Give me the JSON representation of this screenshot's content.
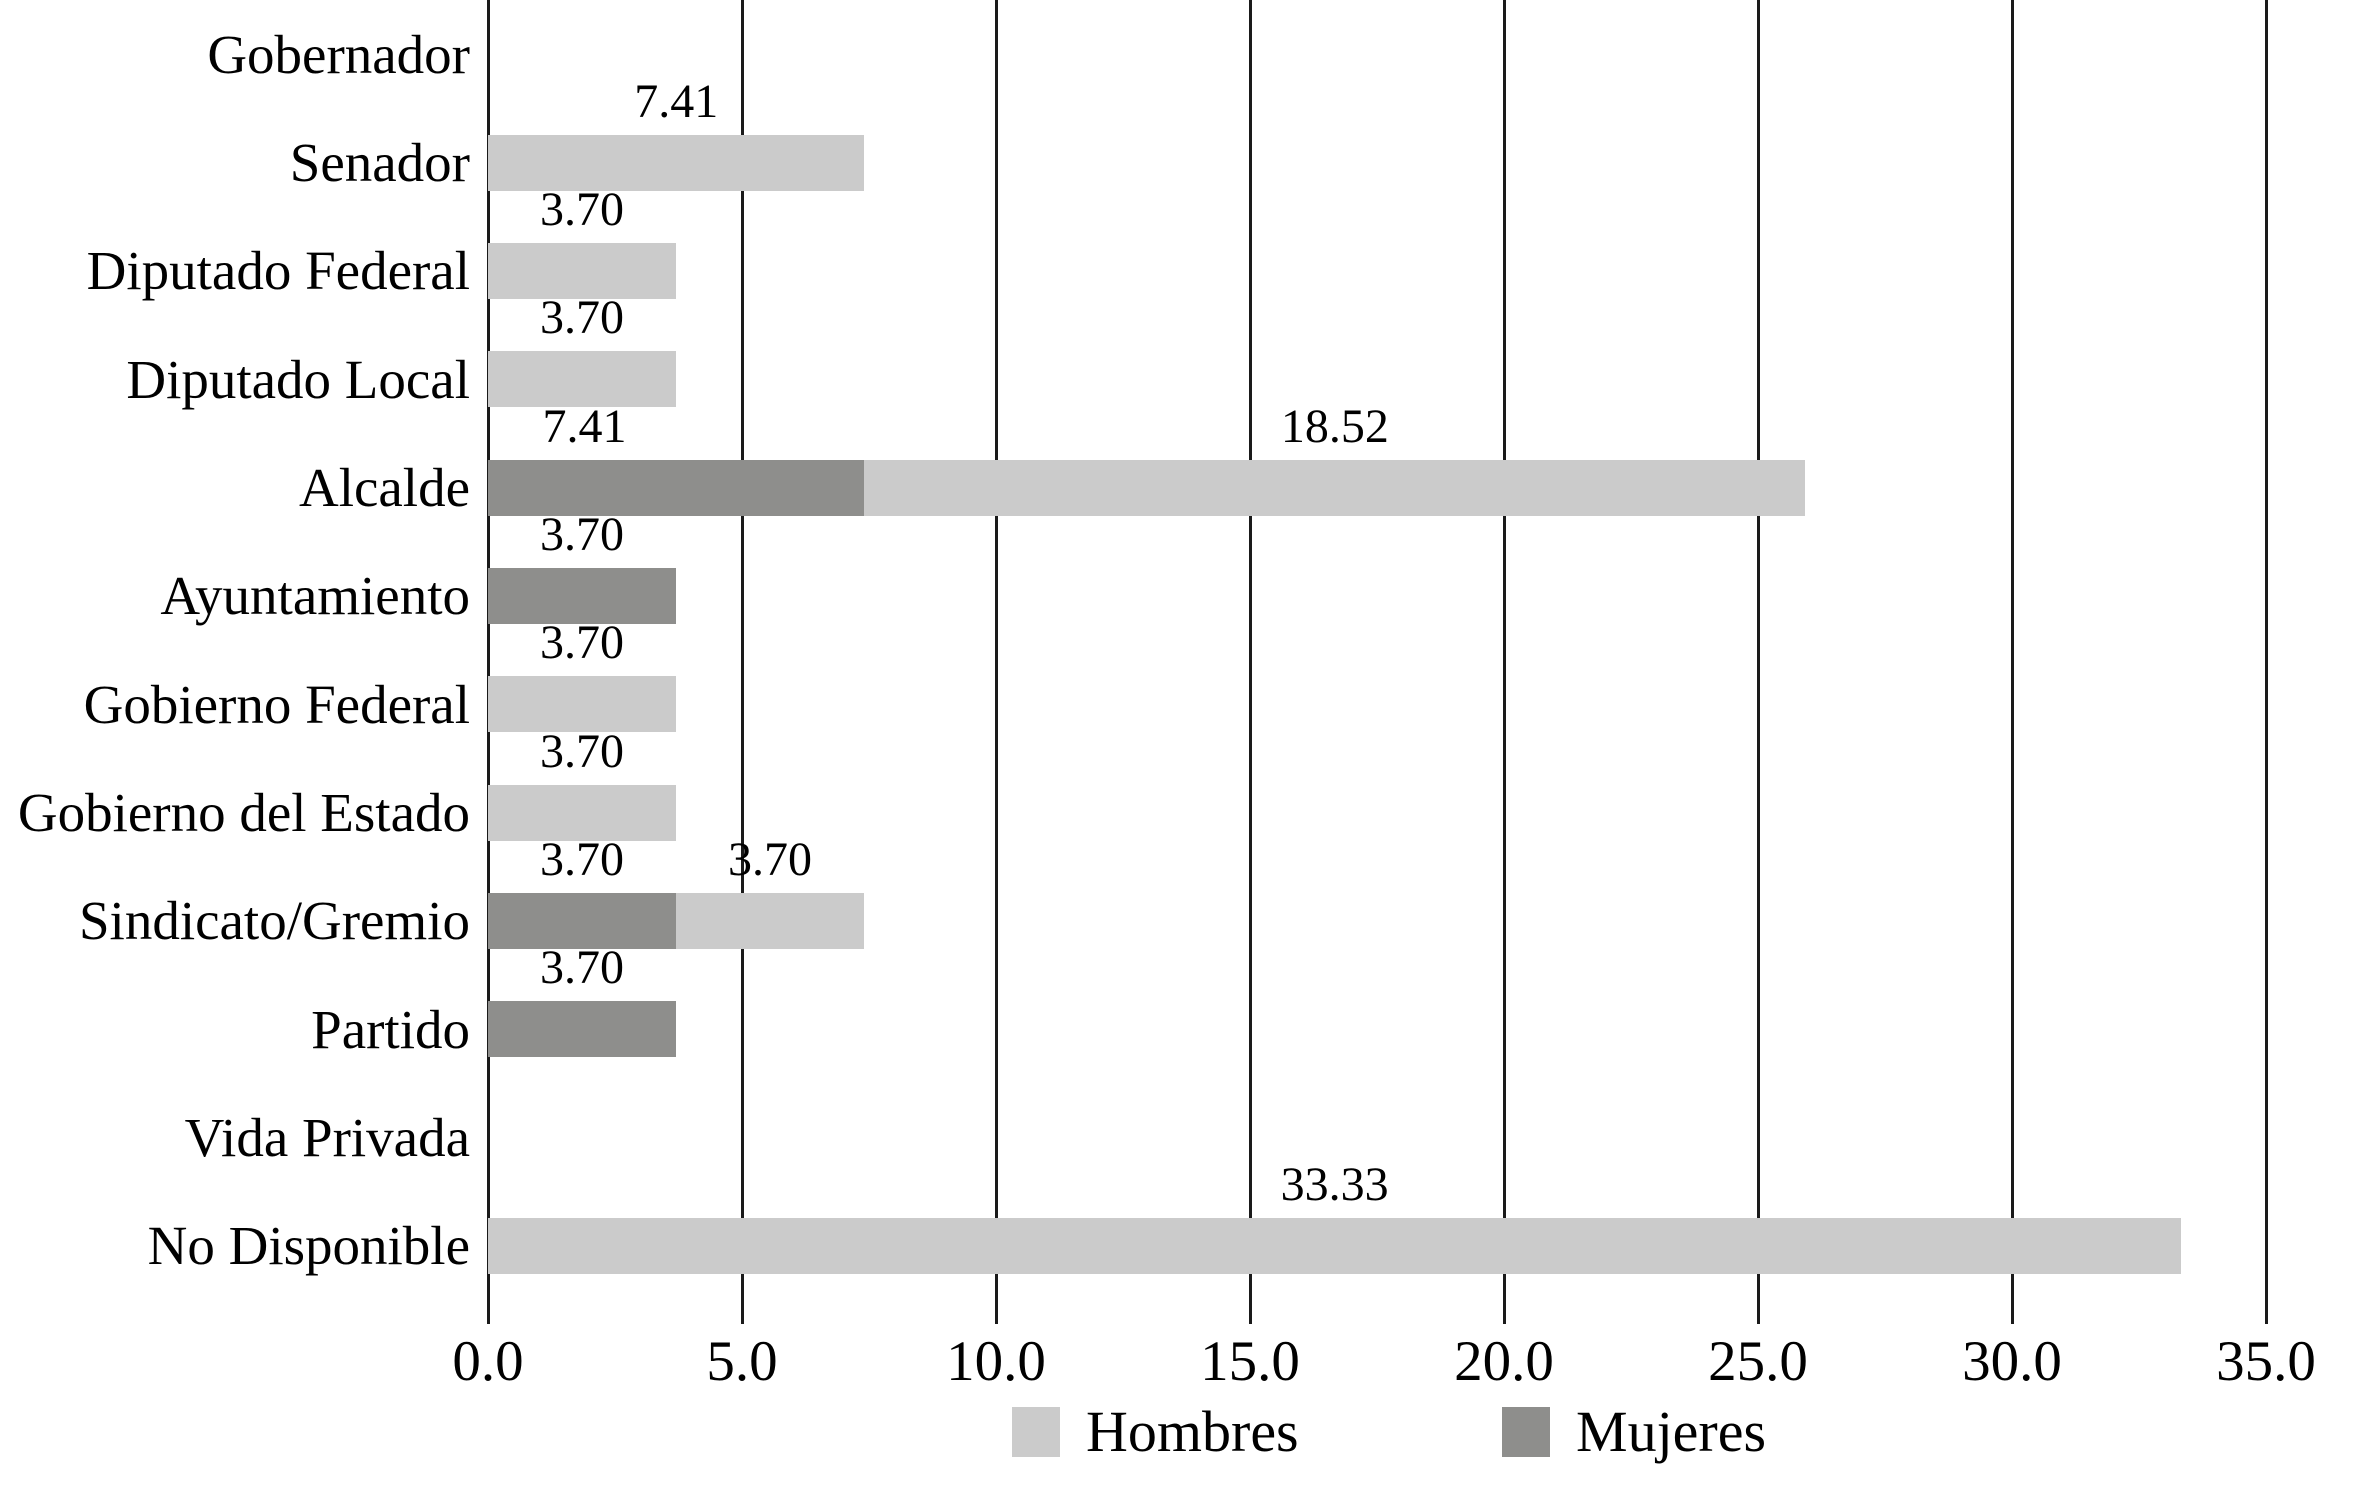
{
  "chart_data": {
    "type": "bar",
    "orientation": "horizontal",
    "stacked": true,
    "title": "",
    "xlabel": "",
    "ylabel": "",
    "xlim": [
      0,
      35
    ],
    "grid": "vertical-black-lines",
    "legend_position": "bottom",
    "categories": [
      "Gobernador",
      "Senador",
      "Diputado Federal",
      "Diputado Local",
      "Alcalde",
      "Ayuntamiento",
      "Gobierno Federal",
      "Gobierno del Estado",
      "Sindicato/Gremio",
      "Partido",
      "Vida Privada",
      "No Disponible"
    ],
    "series": [
      {
        "name": "Hombres",
        "color": "#cbcbcb",
        "values": [
          0,
          7.41,
          3.7,
          3.7,
          18.52,
          0,
          3.7,
          3.7,
          3.7,
          0,
          0,
          33.33
        ]
      },
      {
        "name": "Mujeres",
        "color": "#8e8e8c",
        "values": [
          0,
          0,
          0,
          0,
          7.41,
          3.7,
          0,
          0,
          3.7,
          3.7,
          0,
          0
        ]
      }
    ],
    "rows": [
      {
        "category": "Gobernador",
        "segments": []
      },
      {
        "category": "Senador",
        "segments": [
          {
            "series": "Hombres",
            "value": 7.41,
            "label": "7.41"
          }
        ]
      },
      {
        "category": "Diputado Federal",
        "segments": [
          {
            "series": "Hombres",
            "value": 3.7,
            "label": "3.70"
          }
        ]
      },
      {
        "category": "Diputado Local",
        "segments": [
          {
            "series": "Hombres",
            "value": 3.7,
            "label": "3.70"
          }
        ]
      },
      {
        "category": "Alcalde",
        "segments": [
          {
            "series": "Mujeres",
            "value": 7.41,
            "label": "7.41",
            "label_center": 1.9
          },
          {
            "series": "Hombres",
            "value": 18.52,
            "label": "18.52"
          }
        ]
      },
      {
        "category": "Ayuntamiento",
        "segments": [
          {
            "series": "Mujeres",
            "value": 3.7,
            "label": "3.70"
          }
        ]
      },
      {
        "category": "Gobierno Federal",
        "segments": [
          {
            "series": "Hombres",
            "value": 3.7,
            "label": "3.70"
          }
        ]
      },
      {
        "category": "Gobierno del Estado",
        "segments": [
          {
            "series": "Hombres",
            "value": 3.7,
            "label": "3.70"
          }
        ]
      },
      {
        "category": "Sindicato/Gremio",
        "segments": [
          {
            "series": "Mujeres",
            "value": 3.7,
            "label": "3.70"
          },
          {
            "series": "Hombres",
            "value": 3.7,
            "label": "3.70"
          }
        ]
      },
      {
        "category": "Partido",
        "segments": [
          {
            "series": "Mujeres",
            "value": 3.7,
            "label": "3.70"
          }
        ]
      },
      {
        "category": "Vida Privada",
        "segments": []
      },
      {
        "category": "No Disponible",
        "segments": [
          {
            "series": "Hombres",
            "value": 33.33,
            "label": "33.33"
          }
        ]
      }
    ],
    "series_colors": {
      "Hombres": "#cbcbcb",
      "Mujeres": "#8e8e8c"
    },
    "xticks": [
      {
        "value": 0,
        "label": "0.0"
      },
      {
        "value": 5,
        "label": "5.0"
      },
      {
        "value": 10,
        "label": "10.0"
      },
      {
        "value": 15,
        "label": "15.0"
      },
      {
        "value": 20,
        "label": "20.0"
      },
      {
        "value": 25,
        "label": "25.0"
      },
      {
        "value": 30,
        "label": "30.0"
      },
      {
        "value": 35,
        "label": "35.0"
      }
    ]
  },
  "legend": {
    "items": [
      {
        "label": "Hombres",
        "color": "#cbcbcb"
      },
      {
        "label": "Mujeres",
        "color": "#8e8e8c"
      }
    ]
  },
  "colors": {
    "hombres": "#cbcbcb",
    "mujeres": "#8e8e8c",
    "gridline": "#1a1a1a",
    "text": "#000000",
    "background": "#ffffff"
  }
}
